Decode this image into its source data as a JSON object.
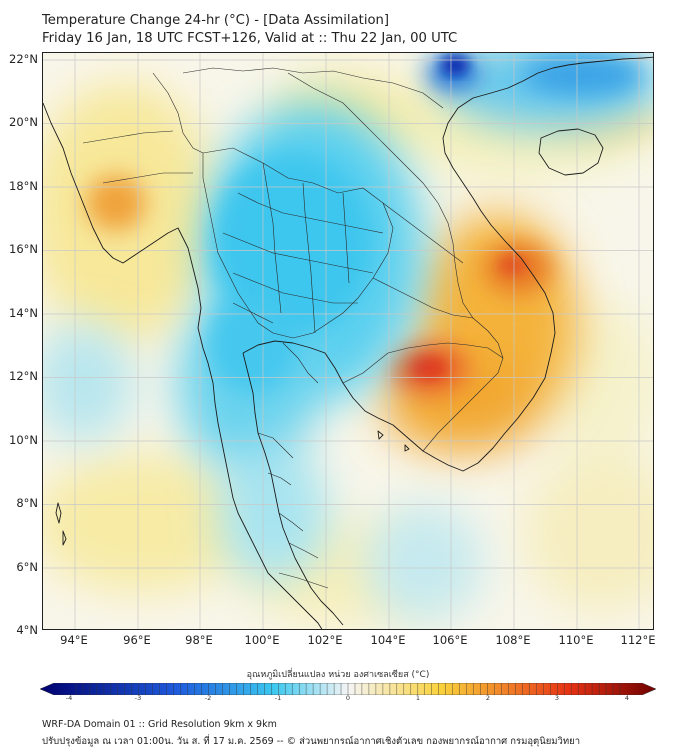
{
  "title": {
    "line1": "Temperature Change 24-hr (°C) - [Data Assimilation]",
    "line2": "Friday 16 Jan, 18 UTC FCST+126, Valid at :: Thu 22 Jan, 00 UTC"
  },
  "axes": {
    "lat_labels": [
      "22°N",
      "20°N",
      "18°N",
      "16°N",
      "14°N",
      "12°N",
      "10°N",
      "8°N",
      "6°N",
      "4°N"
    ],
    "lon_labels": [
      "94°E",
      "96°E",
      "98°E",
      "100°E",
      "102°E",
      "104°E",
      "106°E",
      "108°E",
      "110°E",
      "112°E"
    ]
  },
  "colorbar": {
    "title": "อุณหภูมิเปลี่ยนแปลง หน่วย องศาเซลเซียส (°C)",
    "min": -4,
    "max": 4,
    "ticks": [
      "-4",
      "-3",
      "-2",
      "-1",
      "0",
      "1",
      "2",
      "3",
      "4"
    ],
    "colors": {
      "cold_extreme": "#00006e",
      "cold": "#1e5adc",
      "cool": "#3cc8f0",
      "neutral": "#f5f5f5",
      "warm": "#fad23c",
      "hot": "#e63214",
      "hot_extreme": "#6e0000"
    }
  },
  "footer": {
    "line1": "WRF-DA Domain 01 :: Grid Resolution 9km x 9km",
    "line2": "ปรับปรุงข้อมูล ณ เวลา 01:00น. วัน ส. ที่ 17 ม.ค. 2569 -- © ส่วนพยากรณ์อากาศเชิงตัวเลข กองพยากรณ์อากาศ กรมอุตุนิยมวิทยา"
  }
}
